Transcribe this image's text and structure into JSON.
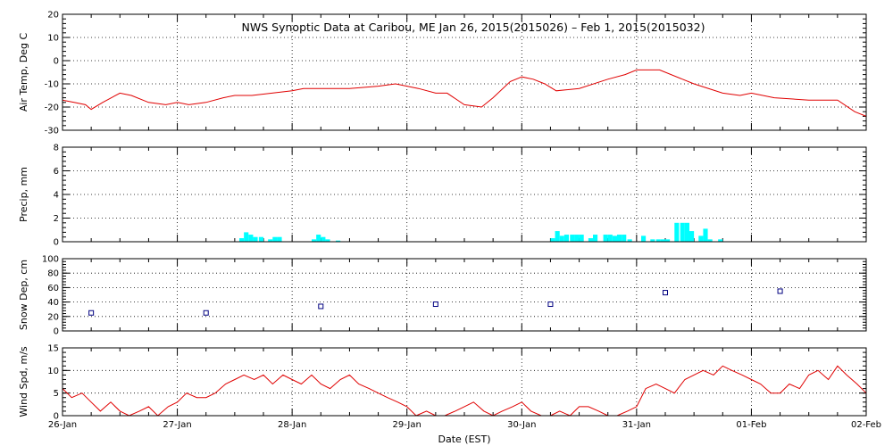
{
  "title": "NWS Synoptic Data at Caribou, ME   Jan 26, 2015(2015026) – Feb  1, 2015(2015032)",
  "colors": {
    "line": "#e00000",
    "precip": "#00ffff",
    "snow": "#000080",
    "axis": "#000000"
  },
  "chart_data": [
    {
      "type": "line",
      "id": "temp",
      "ylabel": "Air Temp, Deg C",
      "ylim": [
        -30,
        20
      ],
      "yticks": [
        -30,
        -20,
        -10,
        0,
        10,
        20
      ],
      "xlim": [
        0,
        7
      ],
      "grid": true,
      "series": [
        {
          "x": [
            0,
            0.1,
            0.2,
            0.25,
            0.35,
            0.5,
            0.6,
            0.75,
            0.9,
            1.0,
            1.1,
            1.25,
            1.4,
            1.5,
            1.65,
            2.0,
            2.1,
            2.25,
            2.5,
            2.75,
            2.9,
            3.1,
            3.25,
            3.35,
            3.5,
            3.65,
            3.75,
            3.9,
            4.0,
            4.1,
            4.2,
            4.3,
            4.5,
            4.75,
            4.9,
            5.0,
            5.2,
            5.5,
            5.75,
            5.9,
            6.0,
            6.2,
            6.5,
            6.75,
            6.9,
            7.0
          ],
          "y": [
            -17,
            -18,
            -19,
            -21,
            -18,
            -14,
            -15,
            -18,
            -19,
            -18,
            -19,
            -18,
            -16,
            -15,
            -15,
            -13,
            -12,
            -12,
            -12,
            -11,
            -10,
            -12,
            -14,
            -14,
            -19,
            -20,
            -16,
            -9,
            -7,
            -8,
            -10,
            -13,
            -12,
            -8,
            -6,
            -4,
            -4,
            -10,
            -14,
            -15,
            -14,
            -16,
            -17,
            -17,
            -22,
            -24
          ]
        }
      ]
    },
    {
      "type": "bar",
      "id": "precip",
      "ylabel": "Precip, mm",
      "ylim": [
        0,
        8
      ],
      "yticks": [
        0,
        2,
        4,
        6,
        8
      ],
      "xlim": [
        0,
        7
      ],
      "grid": true,
      "bar_width": 0.04,
      "x": [
        1.54,
        1.58,
        1.62,
        1.66,
        1.71,
        1.79,
        1.83,
        1.87,
        2.17,
        2.21,
        2.25,
        2.29,
        2.38,
        4.25,
        4.29,
        4.33,
        4.37,
        4.42,
        4.46,
        4.5,
        4.58,
        4.62,
        4.71,
        4.75,
        4.79,
        4.83,
        4.87,
        4.92,
        5.04,
        5.12,
        5.17,
        5.21,
        5.25,
        5.33,
        5.38,
        5.42,
        5.46,
        5.54,
        5.58,
        5.62,
        5.71
      ],
      "values": [
        0.3,
        0.8,
        0.6,
        0.4,
        0.4,
        0.2,
        0.4,
        0.4,
        0.2,
        0.6,
        0.4,
        0.2,
        0.1,
        0.3,
        0.9,
        0.5,
        0.6,
        0.6,
        0.6,
        0.6,
        0.3,
        0.6,
        0.6,
        0.6,
        0.5,
        0.6,
        0.6,
        0.2,
        0.5,
        0.2,
        0.2,
        0.2,
        0.2,
        1.6,
        1.6,
        1.6,
        0.9,
        0.5,
        1.1,
        0.2,
        0.2
      ]
    },
    {
      "type": "scatter",
      "id": "snow",
      "ylabel": "Snow Dep, cm",
      "ylim": [
        0,
        100
      ],
      "yticks": [
        0,
        20,
        40,
        60,
        80,
        100
      ],
      "xlim": [
        0,
        7
      ],
      "grid": true,
      "x": [
        0.25,
        1.25,
        2.25,
        3.25,
        4.25,
        5.25,
        6.25
      ],
      "y": [
        25,
        25,
        34,
        37,
        37,
        53,
        55
      ]
    },
    {
      "type": "line",
      "id": "wind",
      "ylabel": "Wind Spd, m/s",
      "xlabel": "Date (EST)",
      "ylim": [
        0,
        15
      ],
      "yticks": [
        0,
        5,
        10,
        15
      ],
      "xlim": [
        0,
        7
      ],
      "grid": true,
      "xtick_labels": [
        "26-Jan",
        "27-Jan",
        "28-Jan",
        "29-Jan",
        "30-Jan",
        "31-Jan",
        "01-Feb",
        "02-Feb"
      ],
      "series": [
        {
          "x": [
            0,
            0.08,
            0.17,
            0.25,
            0.33,
            0.42,
            0.5,
            0.58,
            0.67,
            0.75,
            0.83,
            0.92,
            1.0,
            1.08,
            1.17,
            1.25,
            1.33,
            1.42,
            1.5,
            1.58,
            1.67,
            1.75,
            1.83,
            1.92,
            2.0,
            2.08,
            2.17,
            2.25,
            2.33,
            2.42,
            2.5,
            2.58,
            2.67,
            2.75,
            2.83,
            2.92,
            3.0,
            3.08,
            3.17,
            3.25,
            3.33,
            3.42,
            3.5,
            3.58,
            3.67,
            3.75,
            3.83,
            3.92,
            4.0,
            4.08,
            4.17,
            4.25,
            4.33,
            4.42,
            4.5,
            4.58,
            4.67,
            4.75,
            4.83,
            4.92,
            5.0,
            5.08,
            5.17,
            5.25,
            5.33,
            5.42,
            5.5,
            5.58,
            5.67,
            5.75,
            5.83,
            5.92,
            6.0,
            6.08,
            6.17,
            6.25,
            6.33,
            6.42,
            6.5,
            6.58,
            6.67,
            6.75,
            6.83,
            6.92,
            7.0
          ],
          "y": [
            6,
            4,
            5,
            3,
            1,
            3,
            1,
            0,
            1,
            2,
            0,
            2,
            3,
            5,
            4,
            4,
            5,
            7,
            8,
            9,
            8,
            9,
            7,
            9,
            8,
            7,
            9,
            7,
            6,
            8,
            9,
            7,
            6,
            5,
            4,
            3,
            2,
            0,
            1,
            0,
            0,
            1,
            2,
            3,
            1,
            0,
            1,
            2,
            3,
            1,
            0,
            0,
            1,
            0,
            2,
            2,
            1,
            0,
            0,
            1,
            2,
            6,
            7,
            6,
            5,
            8,
            9,
            10,
            9,
            11,
            10,
            9,
            8,
            7,
            5,
            5,
            7,
            6,
            9,
            10,
            8,
            11,
            9,
            7,
            5
          ]
        }
      ]
    }
  ]
}
